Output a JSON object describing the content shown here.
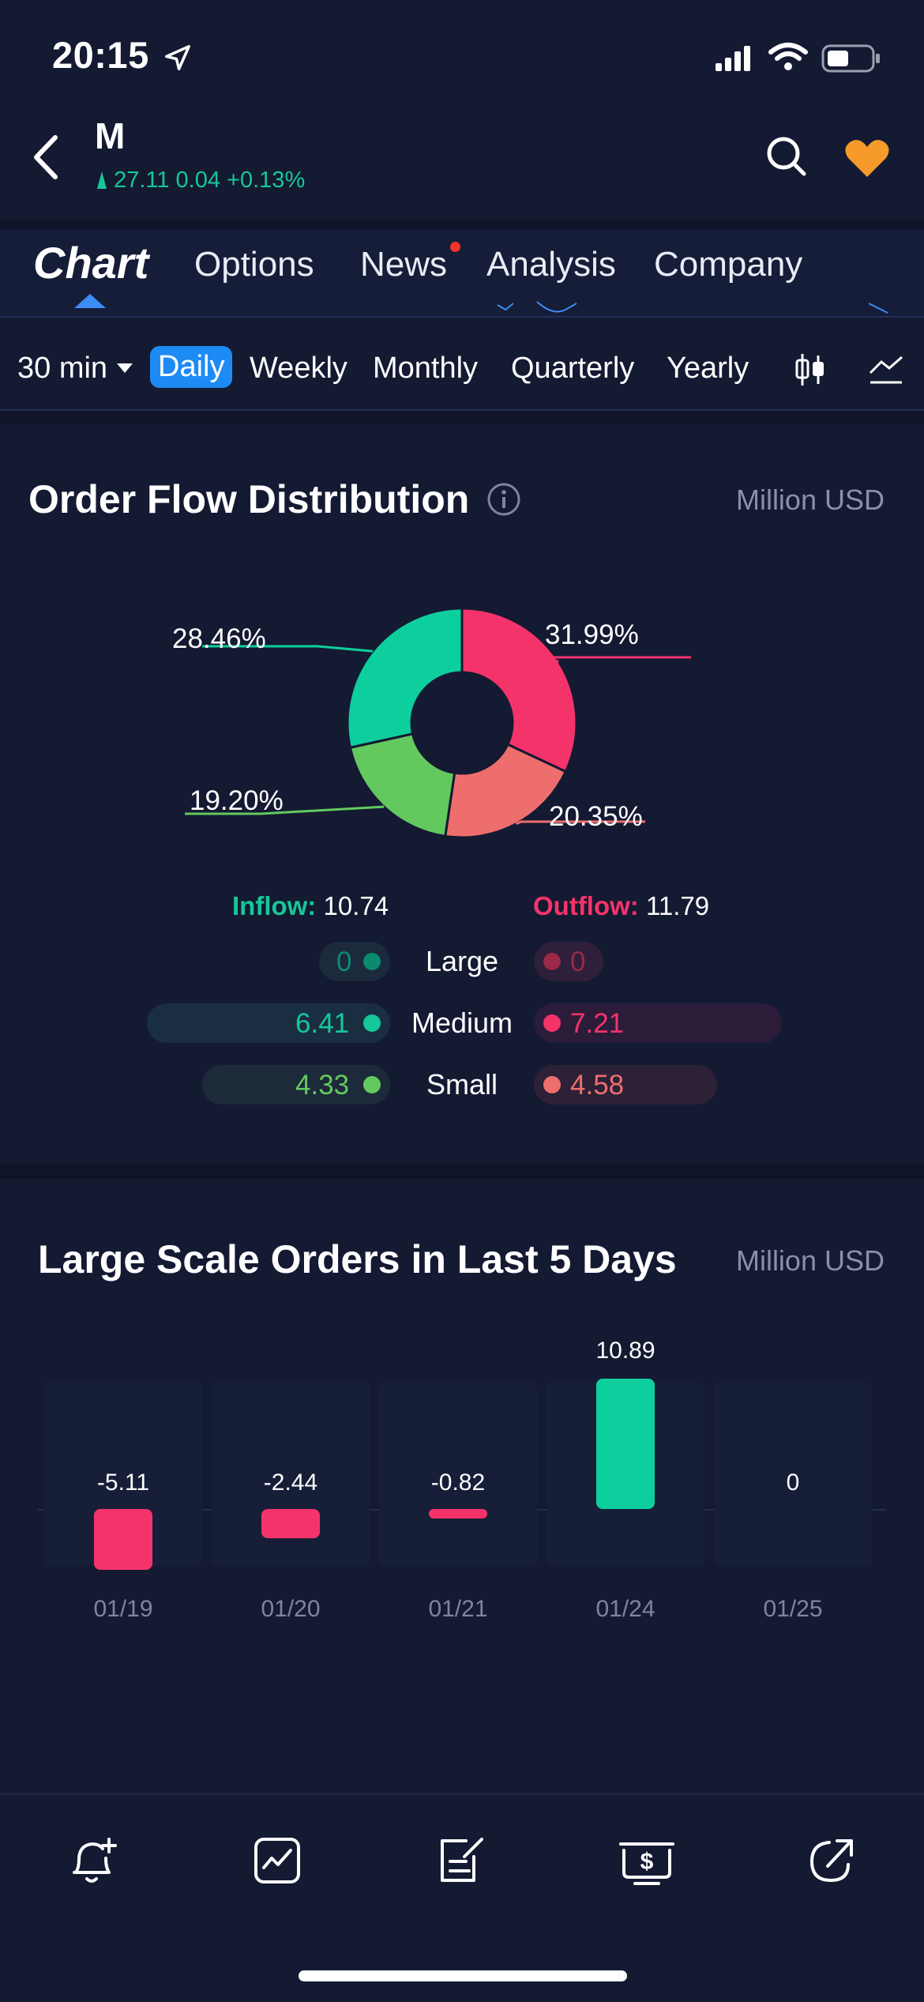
{
  "status_bar": {
    "time": "20:15"
  },
  "header": {
    "ticker": "M",
    "price": "27.11",
    "change": "0.04",
    "change_pct": "+0.13%",
    "accent_up": "#16c79a"
  },
  "tabs": [
    {
      "label": "Chart",
      "active": true
    },
    {
      "label": "Options"
    },
    {
      "label": "News",
      "badge": true
    },
    {
      "label": "Analysis"
    },
    {
      "label": "Company"
    }
  ],
  "periods": {
    "interval": "30 min",
    "items": [
      "Daily",
      "Weekly",
      "Monthly",
      "Quarterly",
      "Yearly"
    ],
    "active": "Daily"
  },
  "order_flow": {
    "title": "Order Flow Distribution",
    "unit": "Million USD",
    "inflow_label": "Inflow:",
    "inflow_value": "10.74",
    "outflow_label": "Outflow:",
    "outflow_value": "11.79",
    "rows": [
      {
        "label": "Large",
        "in": "0",
        "out": "0"
      },
      {
        "label": "Medium",
        "in": "6.41",
        "out": "7.21"
      },
      {
        "label": "Small",
        "in": "4.33",
        "out": "4.58"
      }
    ]
  },
  "large_orders": {
    "title": "Large Scale Orders in Last 5 Days",
    "unit": "Million USD"
  },
  "chart_data": [
    {
      "type": "pie",
      "labels": [
        "Outflow Medium",
        "Outflow Small",
        "Inflow Small",
        "Inflow Medium"
      ],
      "values": [
        31.99,
        20.35,
        19.2,
        28.46
      ],
      "value_labels": [
        "31.99%",
        "20.35%",
        "19.20%",
        "28.46%"
      ],
      "colors": [
        "#f5336b",
        "#ee6e6e",
        "#63c95f",
        "#0dcf9e"
      ],
      "donut": true
    },
    {
      "type": "bar",
      "categories": [
        "01/19",
        "01/20",
        "01/21",
        "01/24",
        "01/25"
      ],
      "values": [
        -5.11,
        -2.44,
        -0.82,
        10.89,
        0
      ],
      "value_labels": [
        "-5.11",
        "-2.44",
        "-0.82",
        "10.89",
        "0"
      ],
      "colors": {
        "positive": "#0dcf9e",
        "negative": "#f5336b"
      }
    }
  ],
  "bottom_nav": [
    {
      "icon": "bell-plus-icon"
    },
    {
      "icon": "chart-trend-icon"
    },
    {
      "icon": "edit-note-icon"
    },
    {
      "icon": "dollar-trade-icon"
    },
    {
      "icon": "share-icon"
    }
  ]
}
